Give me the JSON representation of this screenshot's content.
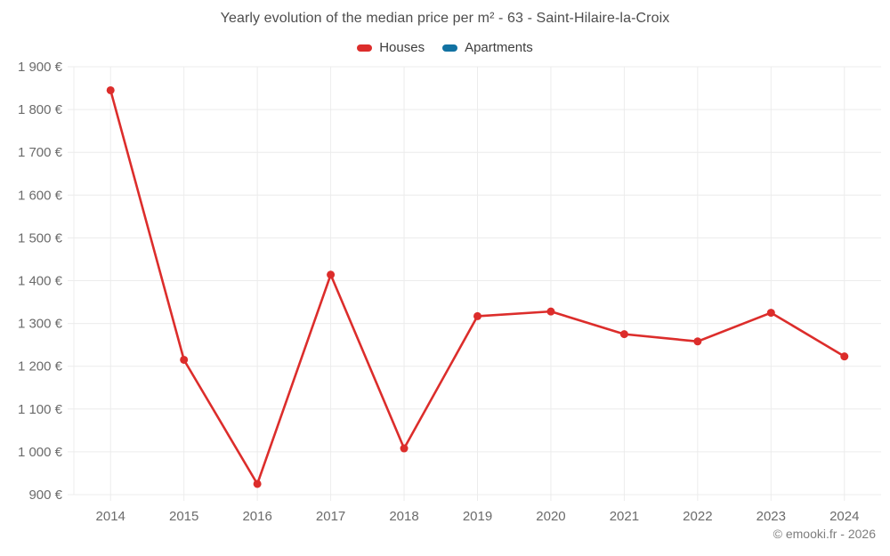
{
  "footer": {
    "credit": "© emooki.fr - 2026"
  },
  "chart_data": {
    "type": "line",
    "title": "Yearly evolution of the median price per m² - 63 - Saint-Hilaire-la-Croix",
    "categories": [
      "2014",
      "2015",
      "2016",
      "2017",
      "2018",
      "2019",
      "2020",
      "2021",
      "2022",
      "2023",
      "2024"
    ],
    "series": [
      {
        "name": "Houses",
        "color": "#dc2d2b",
        "values": [
          1845,
          1215,
          925,
          1414,
          1008,
          1317,
          1328,
          1275,
          1258,
          1325,
          1223
        ]
      },
      {
        "name": "Apartments",
        "color": "#1272a2",
        "values": []
      }
    ],
    "xlabel": "",
    "ylabel": "",
    "ylim": [
      900,
      1900
    ],
    "y_ticks": [
      1900,
      1800,
      1700,
      1600,
      1500,
      1400,
      1300,
      1200,
      1100,
      1000,
      900
    ],
    "y_tick_labels": [
      "1 900 €",
      "1 800 €",
      "1 700 €",
      "1 600 €",
      "1 500 €",
      "1 400 €",
      "1 300 €",
      "1 200 €",
      "1 100 €",
      "1 000 €",
      "900 €"
    ],
    "grid": true,
    "legend_position": "top",
    "colors": {
      "grid_line": "#ececec",
      "axis_tick": "#e3e3e3",
      "tick_label": "#6b6b6b",
      "title_text": "#4d4d4d",
      "legend_text": "#3d3d3d",
      "footer_text": "#7d7d7d"
    }
  }
}
